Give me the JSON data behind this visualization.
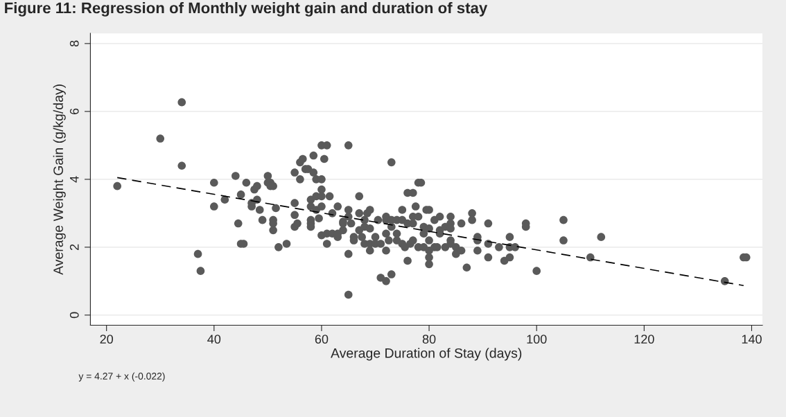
{
  "chart_data": {
    "type": "scatter",
    "title": "Figure 11: Regression of Monthly weight gain and duration of stay",
    "xlabel": "Average Duration of Stay (days)",
    "ylabel": "Average Weight Gain (g/kg/day)",
    "annotations": [
      "y = 4.27 + x (-0.022)"
    ],
    "xlim": [
      17,
      142
    ],
    "ylim": [
      -0.3,
      8.3
    ],
    "xticks": [
      20,
      40,
      60,
      80,
      100,
      120,
      140
    ],
    "yticks": [
      0,
      2,
      4,
      6,
      8
    ],
    "grid": "y",
    "marker": "circle",
    "legend": false,
    "series": [
      {
        "color": "#5a5a5a",
        "x": [
          22,
          30,
          34,
          34,
          37,
          37.5,
          40,
          40,
          42,
          44,
          44.5,
          45,
          45,
          45.5,
          46,
          47,
          47,
          47.5,
          48,
          48,
          48.5,
          49,
          50,
          50,
          50.5,
          50.5,
          51,
          51,
          51,
          51,
          51.5,
          52,
          53.5,
          55,
          55,
          55,
          55,
          55.5,
          56,
          56,
          56.5,
          57,
          57.5,
          58,
          58,
          58,
          58,
          58,
          58.5,
          58.5,
          59,
          59,
          59,
          59.5,
          60,
          60,
          60,
          60,
          60,
          60,
          60.5,
          61,
          61,
          61,
          61.5,
          62,
          62,
          63,
          63,
          63,
          64,
          64,
          64,
          65,
          65,
          65,
          65,
          65,
          65.5,
          66,
          66,
          67,
          67,
          67,
          67.5,
          68,
          68,
          68,
          68.5,
          69,
          69,
          69,
          69,
          70,
          70,
          70.5,
          71,
          71,
          72,
          72,
          72,
          72,
          72,
          72.5,
          73,
          73,
          73,
          73,
          74,
          74,
          74,
          75,
          75,
          75,
          75.5,
          76,
          76,
          76,
          76.5,
          77,
          77,
          77,
          77,
          77.5,
          78,
          78,
          78,
          78.5,
          79,
          79,
          79,
          79.5,
          80,
          80,
          80,
          80,
          80,
          80,
          81,
          81,
          81.5,
          82,
          82,
          82,
          83,
          83,
          84,
          84,
          84,
          84,
          84,
          85,
          85,
          86,
          86,
          87,
          88,
          88,
          89,
          89,
          89,
          91,
          91,
          91,
          93,
          94,
          95,
          95,
          95,
          96,
          98,
          98,
          100,
          105,
          105,
          110,
          112,
          135,
          138.5,
          139
        ],
        "values": [
          3.8,
          5.2,
          6.27,
          4.4,
          1.8,
          1.3,
          3.9,
          3.2,
          3.4,
          4.1,
          2.7,
          3.55,
          2.1,
          2.1,
          3.9,
          3.3,
          3.2,
          3.7,
          3.8,
          3.4,
          3.1,
          2.8,
          4.1,
          3.9,
          3.9,
          3.8,
          3.8,
          2.8,
          2.7,
          2.5,
          3.15,
          2.0,
          2.1,
          4.2,
          3.3,
          2.95,
          2.6,
          2.7,
          4.0,
          4.5,
          4.6,
          4.3,
          4.3,
          3.4,
          3.2,
          2.8,
          2.7,
          2.6,
          4.7,
          4.2,
          3.5,
          3.1,
          4.0,
          2.85,
          5.0,
          4.0,
          3.7,
          3.5,
          3.2,
          2.35,
          4.6,
          5.0,
          2.1,
          2.4,
          3.5,
          2.4,
          3.0,
          3.2,
          2.3,
          2.4,
          2.75,
          2.5,
          2.7,
          5.0,
          3.1,
          2.9,
          1.8,
          0.6,
          2.7,
          2.3,
          2.2,
          3.5,
          3.0,
          2.5,
          2.3,
          2.8,
          2.6,
          2.1,
          3.0,
          3.1,
          2.55,
          2.1,
          1.9,
          2.3,
          2.1,
          2.8,
          2.1,
          1.1,
          2.9,
          2.8,
          2.4,
          1.9,
          1.0,
          2.2,
          4.5,
          2.8,
          1.2,
          2.6,
          2.8,
          2.2,
          2.4,
          3.1,
          2.8,
          2.1,
          2.0,
          3.6,
          2.7,
          1.6,
          2.1,
          3.6,
          2.9,
          2.7,
          2.2,
          3.2,
          2.9,
          2.0,
          3.9,
          3.9,
          2.0,
          2.6,
          2.4,
          3.1,
          3.1,
          2.55,
          2.2,
          1.9,
          1.7,
          1.5,
          2.8,
          2.0,
          2.0,
          2.5,
          2.4,
          2.9,
          2.6,
          2.0,
          2.9,
          2.7,
          2.55,
          2.2,
          2.1,
          2.0,
          1.8,
          2.7,
          1.9,
          1.4,
          3.0,
          2.8,
          2.3,
          2.2,
          1.9,
          2.7,
          2.1,
          1.7,
          2.0,
          1.6,
          2.3,
          2.0,
          1.7,
          2.0,
          2.7,
          2.6,
          1.3,
          2.8,
          2.2,
          1.7,
          2.3,
          1.0,
          1.7,
          1.7
        ]
      },
      {
        "type": "line",
        "color": "#000000",
        "line_style": "dashed",
        "marker": "none",
        "x": [
          22,
          138.5
        ],
        "values": [
          4.05,
          0.87
        ]
      }
    ]
  }
}
